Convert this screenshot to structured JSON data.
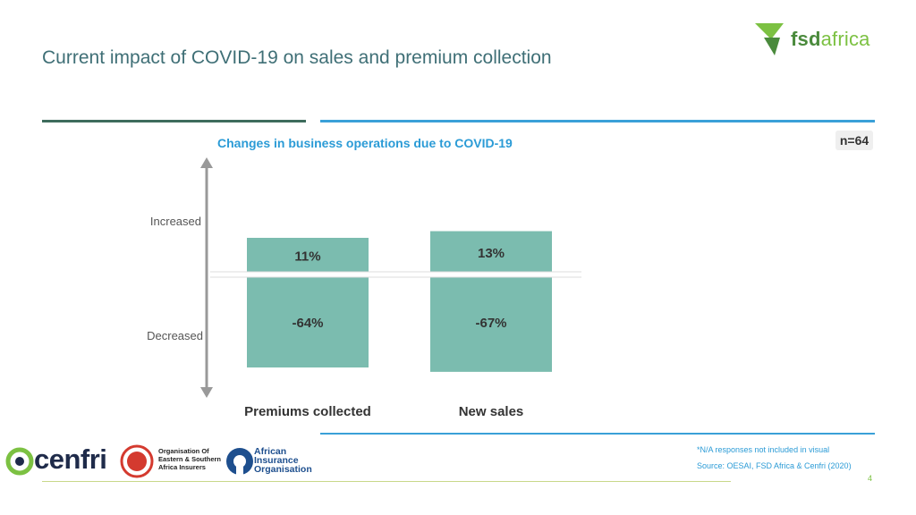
{
  "slide": {
    "title": "Current impact of COVID-19 on sales and premium collection",
    "page_number": "4",
    "footnote": "*N/A responses not included in visual",
    "source": "Source: OESAI, FSD Africa & Cenfri (2020)",
    "sample_size": "n=64"
  },
  "logo": {
    "part1": "fsd",
    "part2": "africa"
  },
  "partners": {
    "cenfri": "cenfri",
    "oesai": [
      "Organisation Of",
      "Eastern & Southern",
      "Africa Insurers"
    ],
    "aio": [
      "African",
      "Insurance",
      "Organisation"
    ]
  },
  "colors": {
    "bar": "#7bbcaf",
    "title": "#3f6f76",
    "accent_blue": "#2b9bd6",
    "logo_green": "#7cc142"
  },
  "chart_data": {
    "type": "bar",
    "title": "Changes in business operations due to COVID-19",
    "categories": [
      "Premiums collected",
      "New sales"
    ],
    "series": [
      {
        "name": "Increased",
        "values": [
          11,
          13
        ],
        "labels": [
          "11%",
          "13%"
        ]
      },
      {
        "name": "Decreased",
        "values": [
          -64,
          -67
        ],
        "labels": [
          "-64%",
          "-67%"
        ]
      }
    ],
    "axis_labels": {
      "up": "Increased",
      "down": "Decreased"
    },
    "ylim": [
      -70,
      15
    ],
    "grid": false
  }
}
